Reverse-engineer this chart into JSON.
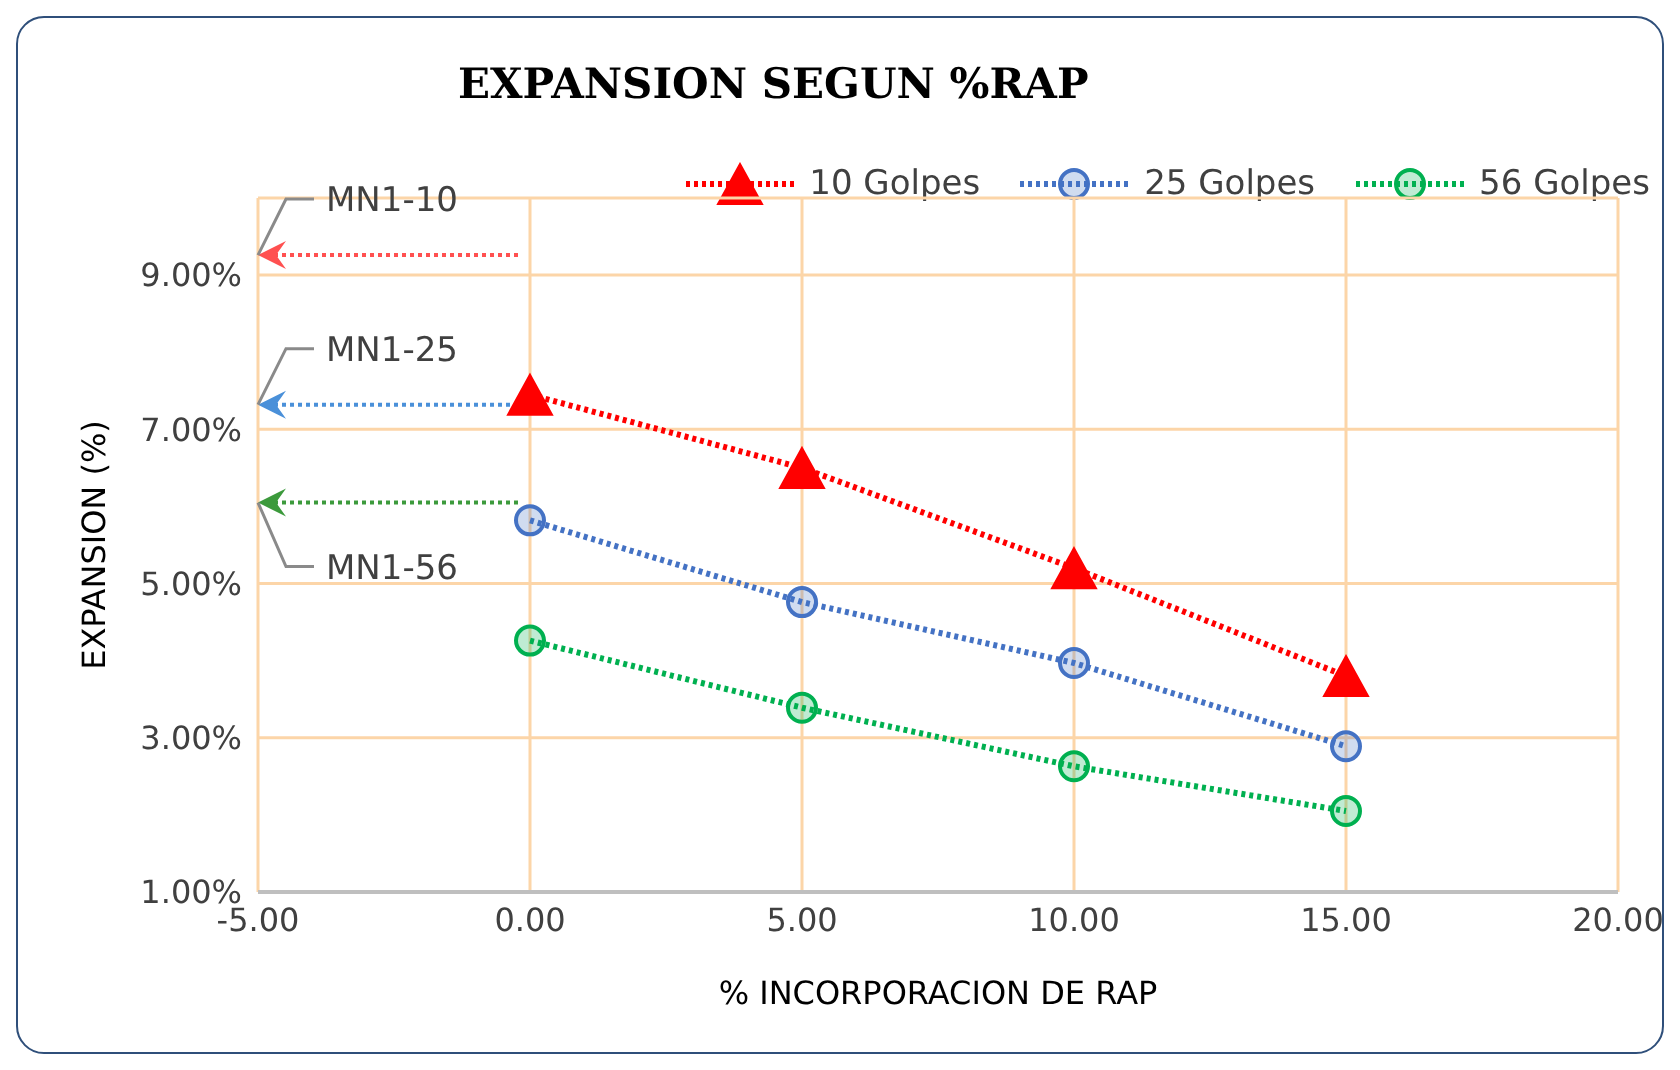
{
  "chart_data": {
    "type": "line",
    "title": "EXPANSION SEGUN %RAP",
    "xlabel": "% INCORPORACION DE RAP",
    "ylabel": "EXPANSION (%)",
    "xlim": [
      -5,
      20
    ],
    "xticks": [
      {
        "value": -5,
        "label": "-5.00"
      },
      {
        "value": 0,
        "label": "0.00"
      },
      {
        "value": 5,
        "label": "5.00"
      },
      {
        "value": 10,
        "label": "10.00"
      },
      {
        "value": 15,
        "label": "15.00"
      },
      {
        "value": 20,
        "label": "20.00"
      }
    ],
    "ylim": [
      1,
      10
    ],
    "yticks": [
      {
        "value": 1,
        "label": "1.00%"
      },
      {
        "value": 3,
        "label": "3.00%"
      },
      {
        "value": 5,
        "label": "5.00%"
      },
      {
        "value": 7,
        "label": "7.00%"
      },
      {
        "value": 9,
        "label": "9.00%"
      }
    ],
    "grid": true,
    "legend": "top right",
    "line_style": "dotted",
    "series": [
      {
        "name": "10 Golpes",
        "color": "#ff0000",
        "marker": "triangle",
        "x": [
          0,
          5,
          10,
          15
        ],
        "values": [
          7.45,
          6.5,
          5.2,
          3.8
        ]
      },
      {
        "name": "25 Golpes",
        "color": "#4472c4",
        "marker": "circle",
        "x": [
          0,
          5,
          10,
          15
        ],
        "values": [
          5.82,
          4.76,
          3.97,
          2.89
        ]
      },
      {
        "name": "56 Golpes",
        "color": "#00b050",
        "marker": "circle",
        "x": [
          0,
          5,
          10,
          15
        ],
        "values": [
          4.26,
          3.39,
          2.63,
          2.05
        ]
      }
    ],
    "ref_lines": [
      {
        "axis": "y",
        "value": 9.26,
        "label": "MN1-10",
        "color": "#ff5050",
        "line_style": "dotted"
      },
      {
        "axis": "y",
        "value": 7.32,
        "label": "MN1-25",
        "color": "#4a90d9",
        "line_style": "dotted"
      },
      {
        "axis": "y",
        "value": 6.05,
        "label": "MN1-56",
        "color": "#3c9a3c",
        "line_style": "dotted"
      }
    ]
  }
}
